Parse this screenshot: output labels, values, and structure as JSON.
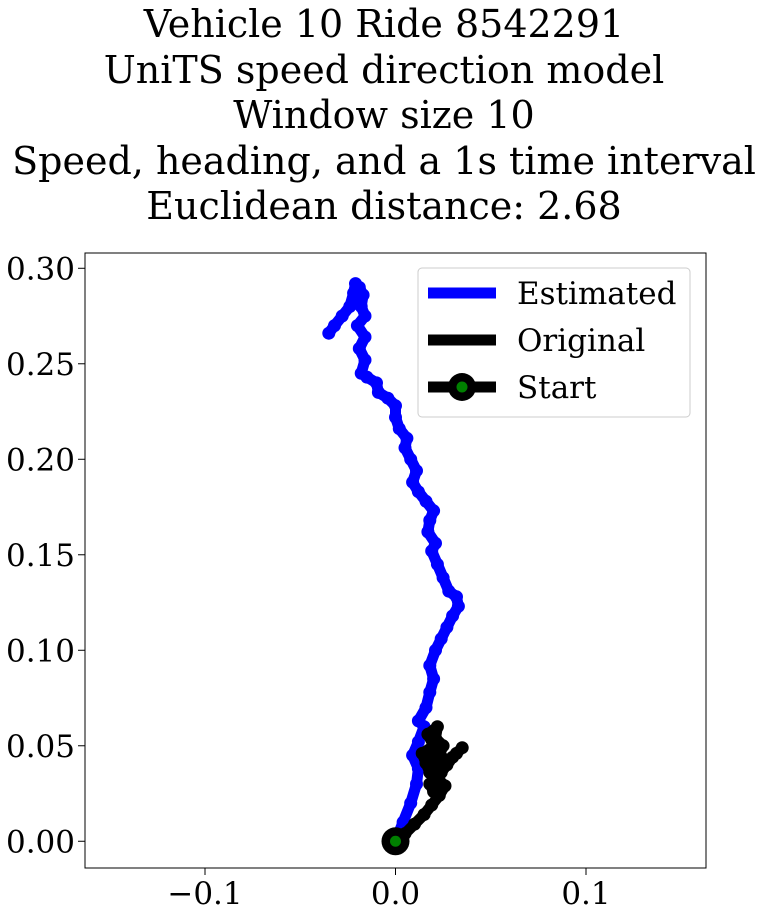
{
  "chart_data": {
    "type": "line",
    "title_lines": [
      "Vehicle 10 Ride 8542291",
      "UniTS speed direction model",
      "Window size 10",
      "Speed, heading, and a 1s time interval",
      "Euclidean distance: 2.68"
    ],
    "xlabel": "",
    "ylabel": "",
    "xlim": [
      -0.163,
      0.163
    ],
    "ylim": [
      -0.014,
      0.308
    ],
    "xticks": [
      -0.1,
      0.0,
      0.1
    ],
    "xtick_labels": [
      "−0.1",
      "0.0",
      "0.1"
    ],
    "yticks": [
      0.0,
      0.05,
      0.1,
      0.15,
      0.2,
      0.25,
      0.3
    ],
    "ytick_labels": [
      "0.00",
      "0.05",
      "0.10",
      "0.15",
      "0.20",
      "0.25",
      "0.30"
    ],
    "grid": false,
    "legend_position": "top-right",
    "series": [
      {
        "name": "Estimated",
        "color": "#0000ff",
        "points": [
          [
            0.0,
            0.0
          ],
          [
            0.004,
            0.01
          ],
          [
            0.008,
            0.02
          ],
          [
            0.011,
            0.03
          ],
          [
            0.012,
            0.038
          ],
          [
            0.009,
            0.045
          ],
          [
            0.012,
            0.052
          ],
          [
            0.015,
            0.06
          ],
          [
            0.012,
            0.063
          ],
          [
            0.016,
            0.07
          ],
          [
            0.018,
            0.078
          ],
          [
            0.02,
            0.085
          ],
          [
            0.018,
            0.092
          ],
          [
            0.021,
            0.1
          ],
          [
            0.024,
            0.106
          ],
          [
            0.027,
            0.112
          ],
          [
            0.03,
            0.118
          ],
          [
            0.033,
            0.123
          ],
          [
            0.032,
            0.128
          ],
          [
            0.028,
            0.131
          ],
          [
            0.025,
            0.138
          ],
          [
            0.022,
            0.145
          ],
          [
            0.019,
            0.152
          ],
          [
            0.021,
            0.156
          ],
          [
            0.017,
            0.162
          ],
          [
            0.018,
            0.168
          ],
          [
            0.02,
            0.173
          ],
          [
            0.016,
            0.178
          ],
          [
            0.012,
            0.183
          ],
          [
            0.009,
            0.188
          ],
          [
            0.011,
            0.194
          ],
          [
            0.008,
            0.2
          ],
          [
            0.005,
            0.206
          ],
          [
            0.006,
            0.211
          ],
          [
            0.002,
            0.216
          ],
          [
            0.0,
            0.222
          ],
          [
            0.0,
            0.228
          ],
          [
            -0.004,
            0.232
          ],
          [
            -0.009,
            0.235
          ],
          [
            -0.01,
            0.24
          ],
          [
            -0.015,
            0.243
          ],
          [
            -0.018,
            0.245
          ],
          [
            -0.016,
            0.252
          ],
          [
            -0.019,
            0.258
          ],
          [
            -0.016,
            0.264
          ],
          [
            -0.02,
            0.27
          ],
          [
            -0.016,
            0.275
          ],
          [
            -0.018,
            0.28
          ],
          [
            -0.017,
            0.286
          ],
          [
            -0.019,
            0.29
          ],
          [
            -0.021,
            0.292
          ],
          [
            -0.022,
            0.287
          ],
          [
            -0.024,
            0.28
          ],
          [
            -0.028,
            0.275
          ],
          [
            -0.032,
            0.27
          ],
          [
            -0.035,
            0.266
          ]
        ]
      },
      {
        "name": "Original",
        "color": "#000000",
        "points": [
          [
            0.0,
            0.0
          ],
          [
            0.005,
            0.004
          ],
          [
            0.01,
            0.009
          ],
          [
            0.015,
            0.014
          ],
          [
            0.019,
            0.019
          ],
          [
            0.023,
            0.024
          ],
          [
            0.026,
            0.029
          ],
          [
            0.022,
            0.033
          ],
          [
            0.018,
            0.036
          ],
          [
            0.016,
            0.041
          ],
          [
            0.014,
            0.046
          ],
          [
            0.02,
            0.05
          ],
          [
            0.017,
            0.056
          ],
          [
            0.022,
            0.06
          ],
          [
            0.021,
            0.054
          ],
          [
            0.025,
            0.05
          ],
          [
            0.023,
            0.045
          ],
          [
            0.028,
            0.042
          ],
          [
            0.032,
            0.046
          ],
          [
            0.035,
            0.049
          ],
          [
            0.03,
            0.044
          ],
          [
            0.027,
            0.04
          ],
          [
            0.024,
            0.036
          ],
          [
            0.021,
            0.033
          ],
          [
            0.018,
            0.03
          ],
          [
            0.02,
            0.026
          ],
          [
            0.024,
            0.038
          ],
          [
            0.019,
            0.042
          ],
          [
            0.023,
            0.047
          ]
        ]
      }
    ],
    "legend": [
      {
        "label": "Estimated",
        "color": "#0000ff"
      },
      {
        "label": "Original",
        "color": "#000000"
      },
      {
        "label": "Start",
        "color": "#000000",
        "marker_face": "#008000"
      }
    ],
    "start_point": {
      "x": 0.0,
      "y": 0.0,
      "color": "#000000",
      "marker_face": "#008000"
    }
  }
}
